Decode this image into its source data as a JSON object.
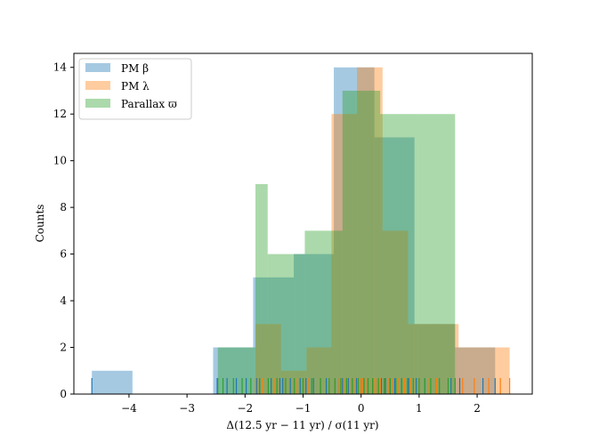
{
  "chart_data": {
    "type": "histogram",
    "title": "",
    "xlabel": "Δ(12.5 yr − 11 yr) / σ(11 yr)",
    "ylabel": "Counts",
    "xlim": [
      -4.95,
      2.95
    ],
    "ylim": [
      0,
      14.6
    ],
    "xticks": [
      -4,
      -3,
      -2,
      -1,
      0,
      1,
      2
    ],
    "xtick_labels": [
      "−4",
      "−3",
      "−2",
      "−1",
      "0",
      "1",
      "2"
    ],
    "yticks": [
      0,
      2,
      4,
      6,
      8,
      10,
      12,
      14
    ],
    "grid": false,
    "legend_position": "top-left",
    "series": [
      {
        "name": "PM β",
        "color": "#1f77b4",
        "opacity": 0.4,
        "bins": [
          -4.64,
          -3.94,
          -3.25,
          -2.55,
          -1.86,
          -1.16,
          -0.47,
          0.23,
          0.92,
          1.62,
          2.31
        ],
        "counts": [
          1,
          0,
          0,
          2,
          5,
          6,
          14,
          11,
          3,
          2
        ],
        "rug": [
          -4.64,
          -2.48,
          -2.31,
          -2.15,
          -1.98,
          -1.8,
          -1.75,
          -1.55,
          -1.4,
          -1.35,
          -1.22,
          -1.05,
          -0.95,
          -0.82,
          -0.7,
          -0.6,
          -0.45,
          -0.4,
          -0.32,
          -0.22,
          -0.15,
          -0.08,
          0.0,
          0.05,
          0.12,
          0.2,
          0.28,
          0.35,
          0.42,
          0.5,
          0.58,
          0.7,
          0.82,
          0.95,
          1.1,
          1.3,
          1.55,
          1.7,
          2.1,
          2.31
        ]
      },
      {
        "name": "PM λ",
        "color": "#ff7f0e",
        "opacity": 0.4,
        "bins": [
          -1.82,
          -1.38,
          -0.94,
          -0.51,
          -0.07,
          0.37,
          0.81,
          1.25,
          1.68,
          2.12,
          2.56
        ],
        "counts": [
          3,
          1,
          2,
          12,
          14,
          7,
          3,
          3,
          2,
          2
        ],
        "rug": [
          -1.82,
          -1.7,
          -1.5,
          -1.3,
          -1.1,
          -0.9,
          -0.7,
          -0.55,
          -0.45,
          -0.4,
          -0.35,
          -0.3,
          -0.25,
          -0.2,
          -0.15,
          -0.1,
          -0.05,
          0.0,
          0.03,
          0.08,
          0.12,
          0.18,
          0.22,
          0.28,
          0.33,
          0.4,
          0.48,
          0.55,
          0.65,
          0.75,
          0.85,
          1.0,
          1.15,
          1.3,
          1.5,
          1.75,
          1.95,
          2.2,
          2.4,
          2.56
        ]
      },
      {
        "name": "Parallax ϖ",
        "color": "#2ca02c",
        "opacity": 0.4,
        "bins": [
          -2.47,
          -1.82,
          -1.61,
          -0.97,
          -0.32,
          0.33,
          0.98,
          1.62
        ],
        "counts": [
          2,
          9,
          6,
          7,
          13,
          12,
          12
        ],
        "rug": [
          -2.47,
          -2.38,
          -2.2,
          -2.05,
          -1.9,
          -1.75,
          -1.6,
          -1.45,
          -1.3,
          -1.15,
          -1.0,
          -0.85,
          -0.7,
          -0.55,
          -0.45,
          -0.35,
          -0.25,
          -0.15,
          -0.05,
          0.05,
          0.12,
          0.2,
          0.3,
          0.4,
          0.5,
          0.6,
          0.7,
          0.8,
          0.9,
          1.0,
          1.1,
          1.2,
          1.35,
          1.5,
          1.62
        ]
      }
    ]
  }
}
